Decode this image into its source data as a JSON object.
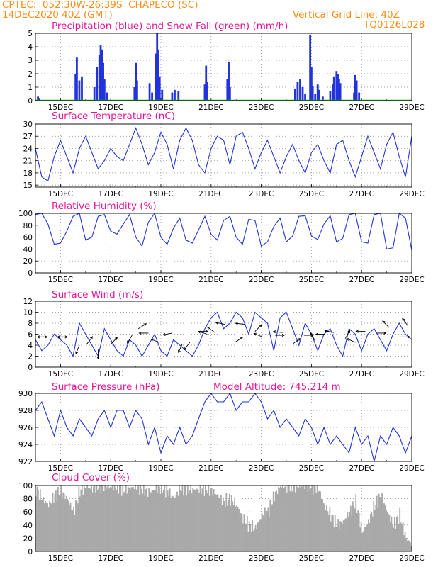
{
  "header": {
    "line1_left": "CPTEC:  052:30W-26:39S  CHAPECO (SC)",
    "line2_left": "14DEC2020 40Z (GMT)",
    "line2_right": "Vertical Grid Line: 40Z",
    "line3_right": "TQ0126L028"
  },
  "colors": {
    "accent": "#ff8c1a",
    "title": "#e6149a",
    "line": "#2233dd",
    "cloud": "#a9a9a9",
    "snow": "#22aa22"
  },
  "chart_data": [
    {
      "id": "precip",
      "type": "bar",
      "title": "Precipitation (blue) and Snow Fall (green) (mm/h)",
      "ylim": [
        0,
        5
      ],
      "yticks": [
        "0",
        "1",
        "2",
        "3",
        "4",
        "5"
      ],
      "xticks": [
        "15DEC",
        "17DEC",
        "19DEC",
        "21DEC",
        "23DEC",
        "25DEC",
        "27DEC",
        "29DEC"
      ],
      "x_domain_days": [
        14.0,
        29.0
      ],
      "series": [
        {
          "name": "Precipitation",
          "color": "#2233dd",
          "points": [
            [
              14.1,
              0.3
            ],
            [
              14.15,
              0.2
            ],
            [
              15.6,
              2.0
            ],
            [
              15.65,
              3.2
            ],
            [
              15.75,
              1.5
            ],
            [
              15.85,
              1.8
            ],
            [
              16.35,
              1.0
            ],
            [
              16.45,
              2.5
            ],
            [
              16.55,
              3.4
            ],
            [
              16.6,
              4.1
            ],
            [
              16.65,
              3.8
            ],
            [
              16.7,
              2.8
            ],
            [
              16.75,
              1.6
            ],
            [
              16.85,
              0.6
            ],
            [
              17.95,
              1.0
            ],
            [
              18.0,
              2.8
            ],
            [
              18.05,
              1.5
            ],
            [
              18.55,
              1.3
            ],
            [
              18.65,
              0.6
            ],
            [
              18.8,
              3.5
            ],
            [
              18.85,
              5.0
            ],
            [
              18.9,
              3.8
            ],
            [
              18.95,
              1.8
            ],
            [
              19.05,
              0.8
            ],
            [
              19.45,
              0.6
            ],
            [
              19.55,
              0.8
            ],
            [
              19.7,
              0.7
            ],
            [
              20.75,
              1.2
            ],
            [
              20.8,
              2.6
            ],
            [
              20.85,
              1.4
            ],
            [
              21.65,
              1.6
            ],
            [
              21.7,
              2.9
            ],
            [
              21.75,
              1.0
            ],
            [
              24.35,
              0.9
            ],
            [
              24.45,
              1.4
            ],
            [
              24.55,
              1.6
            ],
            [
              24.65,
              1.0
            ],
            [
              24.75,
              0.5
            ],
            [
              24.95,
              4.9
            ],
            [
              25.0,
              2.5
            ],
            [
              25.05,
              1.1
            ],
            [
              25.15,
              0.5
            ],
            [
              25.25,
              1.2
            ],
            [
              25.3,
              0.8
            ],
            [
              25.45,
              0.3
            ],
            [
              25.75,
              0.7
            ],
            [
              25.85,
              1.2
            ],
            [
              25.9,
              1.8
            ],
            [
              26.0,
              2.2
            ],
            [
              26.05,
              2.0
            ],
            [
              26.1,
              1.6
            ],
            [
              26.15,
              1.3
            ],
            [
              26.7,
              0.6
            ],
            [
              26.75,
              1.9
            ],
            [
              26.8,
              1.5
            ],
            [
              26.9,
              0.6
            ]
          ]
        },
        {
          "name": "Snow Fall",
          "color": "#22aa22",
          "value": 0
        }
      ]
    },
    {
      "id": "temp",
      "type": "line",
      "title": "Surface Temperature (nC)",
      "ylim": [
        14.5,
        30
      ],
      "yticks": [
        "15",
        "18",
        "21",
        "24",
        "27",
        "30"
      ],
      "ytick_values": [
        15,
        18,
        21,
        24,
        27,
        30
      ],
      "xticks": [
        "15DEC",
        "17DEC",
        "19DEC",
        "21DEC",
        "23DEC",
        "25DEC",
        "27DEC",
        "29DEC"
      ],
      "x": [
        14.0,
        14.25,
        14.5,
        14.75,
        15.0,
        15.25,
        15.5,
        15.75,
        16.0,
        16.25,
        16.5,
        16.75,
        17.0,
        17.25,
        17.5,
        17.75,
        18.0,
        18.25,
        18.5,
        18.75,
        19.0,
        19.25,
        19.5,
        19.75,
        20.0,
        20.25,
        20.5,
        20.75,
        21.0,
        21.25,
        21.5,
        21.75,
        22.0,
        22.25,
        22.5,
        22.75,
        23.0,
        23.25,
        23.5,
        23.75,
        24.0,
        24.25,
        24.5,
        24.75,
        25.0,
        25.25,
        25.5,
        25.75,
        26.0,
        26.25,
        26.5,
        26.75,
        27.0,
        27.25,
        27.5,
        27.75,
        28.0,
        28.25,
        28.5,
        28.75,
        29.0
      ],
      "values": [
        24,
        17,
        16,
        22,
        26,
        22,
        18,
        24,
        27,
        23,
        19,
        21,
        24,
        22,
        21,
        25,
        29,
        25,
        20,
        23,
        28,
        25,
        19,
        26,
        29,
        26,
        20,
        18,
        24,
        27,
        26,
        20,
        27,
        28,
        24,
        19,
        23,
        26,
        22,
        18,
        22,
        25,
        21,
        18,
        23,
        25,
        21,
        18,
        25,
        26,
        21,
        17,
        22,
        27,
        23,
        19,
        25,
        28,
        22,
        17,
        27
      ],
      "color": "#2233dd"
    },
    {
      "id": "rh",
      "type": "line",
      "title": "Relative Humidity (%)",
      "ylim": [
        0,
        100
      ],
      "yticks": [
        "0",
        "20",
        "40",
        "60",
        "80",
        "100"
      ],
      "ytick_values": [
        0,
        20,
        40,
        60,
        80,
        100
      ],
      "xticks": [
        "15DEC",
        "17DEC",
        "19DEC",
        "21DEC",
        "23DEC",
        "25DEC",
        "27DEC",
        "29DEC"
      ],
      "x": [
        14.0,
        14.25,
        14.5,
        14.75,
        15.0,
        15.25,
        15.5,
        15.75,
        16.0,
        16.25,
        16.5,
        16.75,
        17.0,
        17.25,
        17.5,
        17.75,
        18.0,
        18.25,
        18.5,
        18.75,
        19.0,
        19.25,
        19.5,
        19.75,
        20.0,
        20.25,
        20.5,
        20.75,
        21.0,
        21.25,
        21.5,
        21.75,
        22.0,
        22.25,
        22.5,
        22.75,
        23.0,
        23.25,
        23.5,
        23.75,
        24.0,
        24.25,
        24.5,
        24.75,
        25.0,
        25.25,
        25.5,
        25.75,
        26.0,
        26.25,
        26.5,
        26.75,
        27.0,
        27.25,
        27.5,
        27.75,
        28.0,
        28.25,
        28.5,
        28.75,
        29.0
      ],
      "values": [
        98,
        100,
        82,
        48,
        50,
        70,
        95,
        100,
        55,
        60,
        95,
        98,
        70,
        65,
        82,
        98,
        60,
        45,
        85,
        100,
        60,
        48,
        75,
        92,
        55,
        50,
        72,
        95,
        65,
        55,
        88,
        95,
        60,
        48,
        90,
        88,
        45,
        52,
        78,
        92,
        52,
        62,
        95,
        96,
        62,
        56,
        82,
        96,
        52,
        58,
        98,
        100,
        52,
        50,
        98,
        100,
        40,
        42,
        100,
        92,
        38
      ],
      "color": "#2233dd"
    },
    {
      "id": "wind",
      "type": "line",
      "title": "Surface Wind (m/s)",
      "ylim": [
        0,
        12
      ],
      "yticks": [
        "0",
        "2",
        "4",
        "6",
        "8",
        "10",
        "12"
      ],
      "ytick_values": [
        0,
        2,
        4,
        6,
        8,
        10,
        12
      ],
      "xticks": [
        "15DEC",
        "17DEC",
        "19DEC",
        "21DEC",
        "23DEC",
        "25DEC",
        "27DEC",
        "29DEC"
      ],
      "x": [
        14.0,
        14.25,
        14.5,
        14.75,
        15.0,
        15.25,
        15.5,
        15.75,
        16.0,
        16.25,
        16.5,
        16.75,
        17.0,
        17.25,
        17.5,
        17.75,
        18.0,
        18.25,
        18.5,
        18.75,
        19.0,
        19.25,
        19.5,
        19.75,
        20.0,
        20.25,
        20.5,
        20.75,
        21.0,
        21.25,
        21.5,
        21.75,
        22.0,
        22.25,
        22.5,
        22.75,
        23.0,
        23.25,
        23.5,
        23.75,
        24.0,
        24.25,
        24.5,
        24.75,
        25.0,
        25.25,
        25.5,
        25.75,
        26.0,
        26.25,
        26.5,
        26.75,
        27.0,
        27.25,
        27.5,
        27.75,
        28.0,
        28.25,
        28.5,
        28.75,
        29.0
      ],
      "values": [
        5,
        3,
        4,
        6,
        5,
        4,
        2,
        8,
        6,
        4,
        2,
        7,
        5,
        3,
        2,
        5,
        4,
        2,
        4,
        6,
        3,
        2,
        5,
        4,
        3,
        2,
        4,
        7,
        9,
        10,
        7,
        8,
        10,
        9,
        6,
        10,
        9,
        8,
        3,
        9,
        10,
        7,
        4,
        8,
        6,
        3,
        6,
        7,
        4,
        2,
        7,
        6,
        3,
        6,
        7,
        5,
        3,
        6,
        8,
        6,
        5
      ],
      "color": "#2233dd",
      "vectors": [
        [
          14.1,
          5.5,
          1,
          0
        ],
        [
          14.45,
          5.5,
          -1,
          0
        ],
        [
          14.9,
          5.5,
          1,
          0
        ],
        [
          15.25,
          5.5,
          -1,
          0
        ],
        [
          15.75,
          4.0,
          -0.4,
          -1
        ],
        [
          16.05,
          4.2,
          0.6,
          0.8
        ],
        [
          16.5,
          3.2,
          0,
          -1
        ],
        [
          17.0,
          4.2,
          0.6,
          0.6
        ],
        [
          17.85,
          5.8,
          -0.3,
          -0.5
        ],
        [
          18.1,
          7.0,
          0.8,
          0.5
        ],
        [
          18.5,
          6.2,
          -1,
          0
        ],
        [
          18.95,
          4.5,
          -0.8,
          0.3
        ],
        [
          19.45,
          6.2,
          -1,
          -0.2
        ],
        [
          19.85,
          4.2,
          -0.4,
          -0.9
        ],
        [
          20.15,
          4.5,
          -0.6,
          -0.8
        ],
        [
          20.5,
          6.5,
          1,
          0
        ],
        [
          20.85,
          6.0,
          -1,
          0.3
        ],
        [
          21.15,
          6.3,
          -0.8,
          0.6
        ],
        [
          21.55,
          7.8,
          -1,
          0.2
        ],
        [
          21.95,
          4.5,
          0.9,
          0.6
        ],
        [
          22.35,
          7.8,
          -1,
          0.1
        ],
        [
          22.75,
          6.5,
          0.7,
          0.7
        ],
        [
          23.05,
          5.5,
          -1,
          0.4
        ],
        [
          23.55,
          5.8,
          1,
          0
        ],
        [
          23.85,
          6.3,
          -1,
          0.1
        ],
        [
          24.25,
          4.2,
          0.8,
          0.6
        ],
        [
          24.7,
          5.8,
          1,
          0
        ],
        [
          25.15,
          4.8,
          -0.5,
          0.8
        ],
        [
          25.55,
          6.0,
          -1,
          0
        ],
        [
          25.9,
          6.3,
          -1,
          0.2
        ],
        [
          26.35,
          5.2,
          0.5,
          0.9
        ],
        [
          26.75,
          4.5,
          -0.9,
          0.4
        ],
        [
          27.15,
          6.5,
          -1,
          0
        ],
        [
          27.6,
          6.2,
          1,
          0
        ],
        [
          28.1,
          7.2,
          -0.6,
          0.6
        ],
        [
          28.55,
          5.5,
          1,
          0
        ],
        [
          28.85,
          7.5,
          -0.6,
          0.8
        ]
      ]
    },
    {
      "id": "pressure",
      "type": "line",
      "title": "Surface Pressure (hPa)",
      "annotation": "Model Altitude: 745.214 m",
      "ylim": [
        922,
        930
      ],
      "yticks": [
        "922",
        "924",
        "926",
        "928",
        "930"
      ],
      "ytick_values": [
        922,
        924,
        926,
        928,
        930
      ],
      "xticks": [
        "15DEC",
        "17DEC",
        "19DEC",
        "21DEC",
        "23DEC",
        "25DEC",
        "27DEC",
        "29DEC"
      ],
      "x": [
        14.0,
        14.25,
        14.5,
        14.75,
        15.0,
        15.25,
        15.5,
        15.75,
        16.0,
        16.25,
        16.5,
        16.75,
        17.0,
        17.25,
        17.5,
        17.75,
        18.0,
        18.25,
        18.5,
        18.75,
        19.0,
        19.25,
        19.5,
        19.75,
        20.0,
        20.25,
        20.5,
        20.75,
        21.0,
        21.25,
        21.5,
        21.75,
        22.0,
        22.25,
        22.5,
        22.75,
        23.0,
        23.25,
        23.5,
        23.75,
        24.0,
        24.25,
        24.5,
        24.75,
        25.0,
        25.25,
        25.5,
        25.75,
        26.0,
        26.25,
        26.5,
        26.75,
        27.0,
        27.25,
        27.5,
        27.75,
        28.0,
        28.25,
        28.5,
        28.75,
        29.0
      ],
      "values": [
        928,
        929,
        927,
        925,
        928,
        926,
        925,
        927,
        926,
        925,
        927,
        928,
        926,
        928,
        928,
        926,
        928,
        927,
        924,
        926,
        923,
        925,
        924,
        926,
        924,
        925,
        927,
        929,
        930,
        929,
        929,
        930,
        928,
        929,
        929,
        930,
        929,
        927,
        928,
        926,
        927,
        926,
        925,
        927,
        926,
        924,
        926,
        924,
        925,
        924,
        923,
        926,
        924,
        925,
        922,
        925,
        924,
        926,
        925,
        923,
        925
      ],
      "color": "#2233dd"
    },
    {
      "id": "cloud",
      "type": "area",
      "title": "Cloud Cover (%)",
      "ylim": [
        0,
        100
      ],
      "yticks": [
        "0",
        "20",
        "40",
        "60",
        "80",
        "100"
      ],
      "ytick_values": [
        0,
        20,
        40,
        60,
        80,
        100
      ],
      "xticks": [
        "15DEC",
        "17DEC",
        "19DEC",
        "21DEC",
        "23DEC",
        "25DEC",
        "27DEC",
        "29DEC"
      ],
      "x": [
        14.0,
        14.25,
        14.5,
        14.75,
        15.0,
        15.25,
        15.5,
        15.75,
        16.0,
        16.25,
        16.5,
        16.75,
        17.0,
        17.25,
        17.5,
        17.75,
        18.0,
        18.25,
        18.5,
        18.75,
        19.0,
        19.25,
        19.5,
        19.75,
        20.0,
        20.25,
        20.5,
        20.75,
        21.0,
        21.25,
        21.5,
        21.75,
        22.0,
        22.25,
        22.5,
        22.75,
        23.0,
        23.25,
        23.5,
        23.75,
        24.0,
        24.25,
        24.5,
        24.75,
        25.0,
        25.25,
        25.5,
        25.75,
        26.0,
        26.25,
        26.5,
        26.75,
        27.0,
        27.25,
        27.5,
        27.75,
        28.0,
        28.25,
        28.5,
        28.75,
        29.0
      ],
      "values": [
        95,
        80,
        70,
        85,
        90,
        80,
        60,
        92,
        98,
        95,
        99,
        99,
        97,
        98,
        94,
        96,
        99,
        95,
        90,
        94,
        97,
        92,
        80,
        96,
        95,
        94,
        93,
        96,
        92,
        85,
        75,
        80,
        70,
        50,
        40,
        35,
        55,
        60,
        85,
        99,
        99,
        100,
        99,
        99,
        98,
        96,
        70,
        55,
        40,
        45,
        60,
        75,
        30,
        45,
        70,
        85,
        60,
        40,
        55,
        20,
        10
      ],
      "color": "#a9a9a9"
    }
  ]
}
